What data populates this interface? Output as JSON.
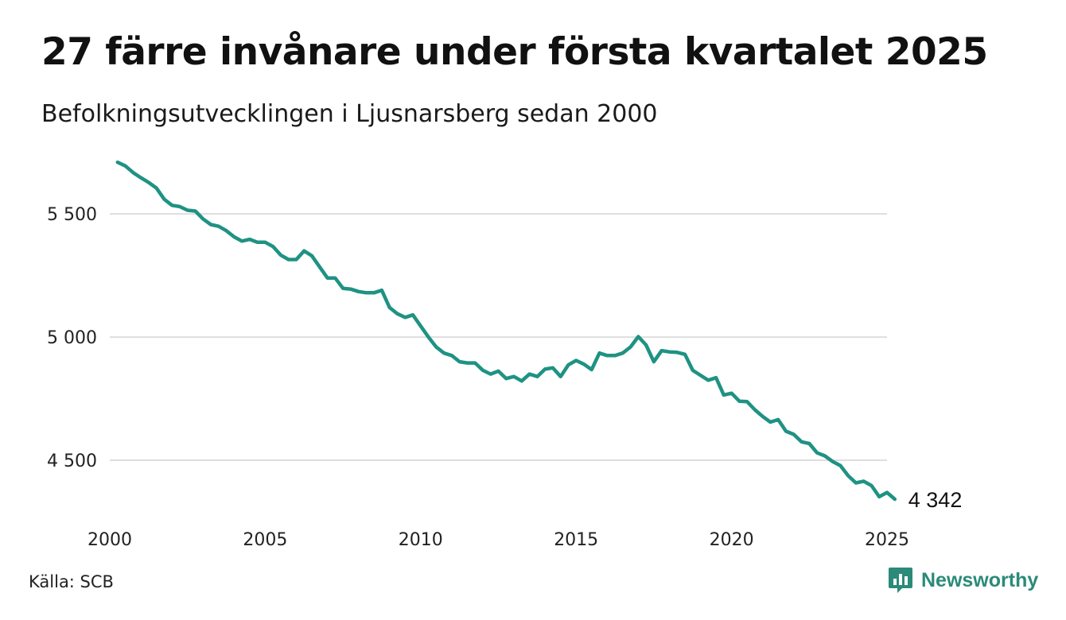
{
  "title": "27 färre invånare under första kvartalet 2025",
  "subtitle": "Befolkningsutvecklingen i Ljusnarsberg sedan 2000",
  "source": "Källa: SCB",
  "brand": {
    "name": "Newsworthy",
    "icon": "newsworthy-logo-icon",
    "color": "#2b8a7a"
  },
  "chart_data": {
    "type": "line",
    "line_color": "#1f9283",
    "grid": true,
    "xlim": [
      2000,
      2025
    ],
    "ylim": [
      4300,
      5720
    ],
    "x_ticks": [
      {
        "value": 2000,
        "label": "2000"
      },
      {
        "value": 2005,
        "label": "2005"
      },
      {
        "value": 2010,
        "label": "2010"
      },
      {
        "value": 2015,
        "label": "2015"
      },
      {
        "value": 2020,
        "label": "2020"
      },
      {
        "value": 2025,
        "label": "2025"
      }
    ],
    "y_ticks": [
      {
        "value": 5500,
        "label": "5 500"
      },
      {
        "value": 5000,
        "label": "5 000"
      },
      {
        "value": 4500,
        "label": "4 500"
      }
    ],
    "end_label": "4 342",
    "series": [
      {
        "x": [
          2000.25,
          2000.5,
          2000.75,
          2001.0,
          2001.25,
          2001.5,
          2001.75,
          2002.0,
          2002.25,
          2002.5,
          2002.75,
          2003.0,
          2003.25,
          2003.5,
          2003.75,
          2004.0,
          2004.25,
          2004.5,
          2004.75,
          2005.0,
          2005.25,
          2005.5,
          2005.75,
          2006.0,
          2006.25,
          2006.5,
          2006.75,
          2007.0,
          2007.25,
          2007.5,
          2007.75,
          2008.0,
          2008.25,
          2008.5,
          2008.75,
          2009.0,
          2009.25,
          2009.5,
          2009.75,
          2010.0,
          2010.25,
          2010.5,
          2010.75,
          2011.0,
          2011.25,
          2011.5,
          2011.75,
          2012.0,
          2012.25,
          2012.5,
          2012.75,
          2013.0,
          2013.25,
          2013.5,
          2013.75,
          2014.0,
          2014.25,
          2014.5,
          2014.75,
          2015.0,
          2015.25,
          2015.5,
          2015.75,
          2016.0,
          2016.25,
          2016.5,
          2016.75,
          2017.0,
          2017.25,
          2017.5,
          2017.75,
          2018.0,
          2018.25,
          2018.5,
          2018.75,
          2019.0,
          2019.25,
          2019.5,
          2019.75,
          2020.0,
          2020.25,
          2020.5,
          2020.75,
          2021.0,
          2021.25,
          2021.5,
          2021.75,
          2022.0,
          2022.25,
          2022.5,
          2022.75,
          2023.0,
          2023.25,
          2023.5,
          2023.75,
          2024.0,
          2024.25,
          2024.5,
          2024.75,
          2025.0,
          2025.25
        ],
        "values": [
          5710,
          5695,
          5668,
          5647,
          5628,
          5605,
          5560,
          5535,
          5530,
          5515,
          5512,
          5480,
          5457,
          5450,
          5432,
          5407,
          5390,
          5397,
          5385,
          5385,
          5368,
          5333,
          5315,
          5315,
          5350,
          5330,
          5285,
          5240,
          5240,
          5198,
          5195,
          5185,
          5180,
          5180,
          5190,
          5120,
          5095,
          5080,
          5090,
          5045,
          5000,
          4960,
          4935,
          4925,
          4900,
          4895,
          4895,
          4865,
          4850,
          4862,
          4832,
          4840,
          4822,
          4850,
          4840,
          4870,
          4875,
          4840,
          4887,
          4905,
          4890,
          4868,
          4935,
          4925,
          4925,
          4935,
          4960,
          5002,
          4968,
          4900,
          4945,
          4940,
          4938,
          4930,
          4865,
          4845,
          4825,
          4835,
          4765,
          4772,
          4740,
          4738,
          4705,
          4678,
          4655,
          4665,
          4618,
          4605,
          4575,
          4568,
          4530,
          4518,
          4495,
          4478,
          4437,
          4408,
          4415,
          4397,
          4352,
          4369,
          4342
        ]
      }
    ]
  }
}
